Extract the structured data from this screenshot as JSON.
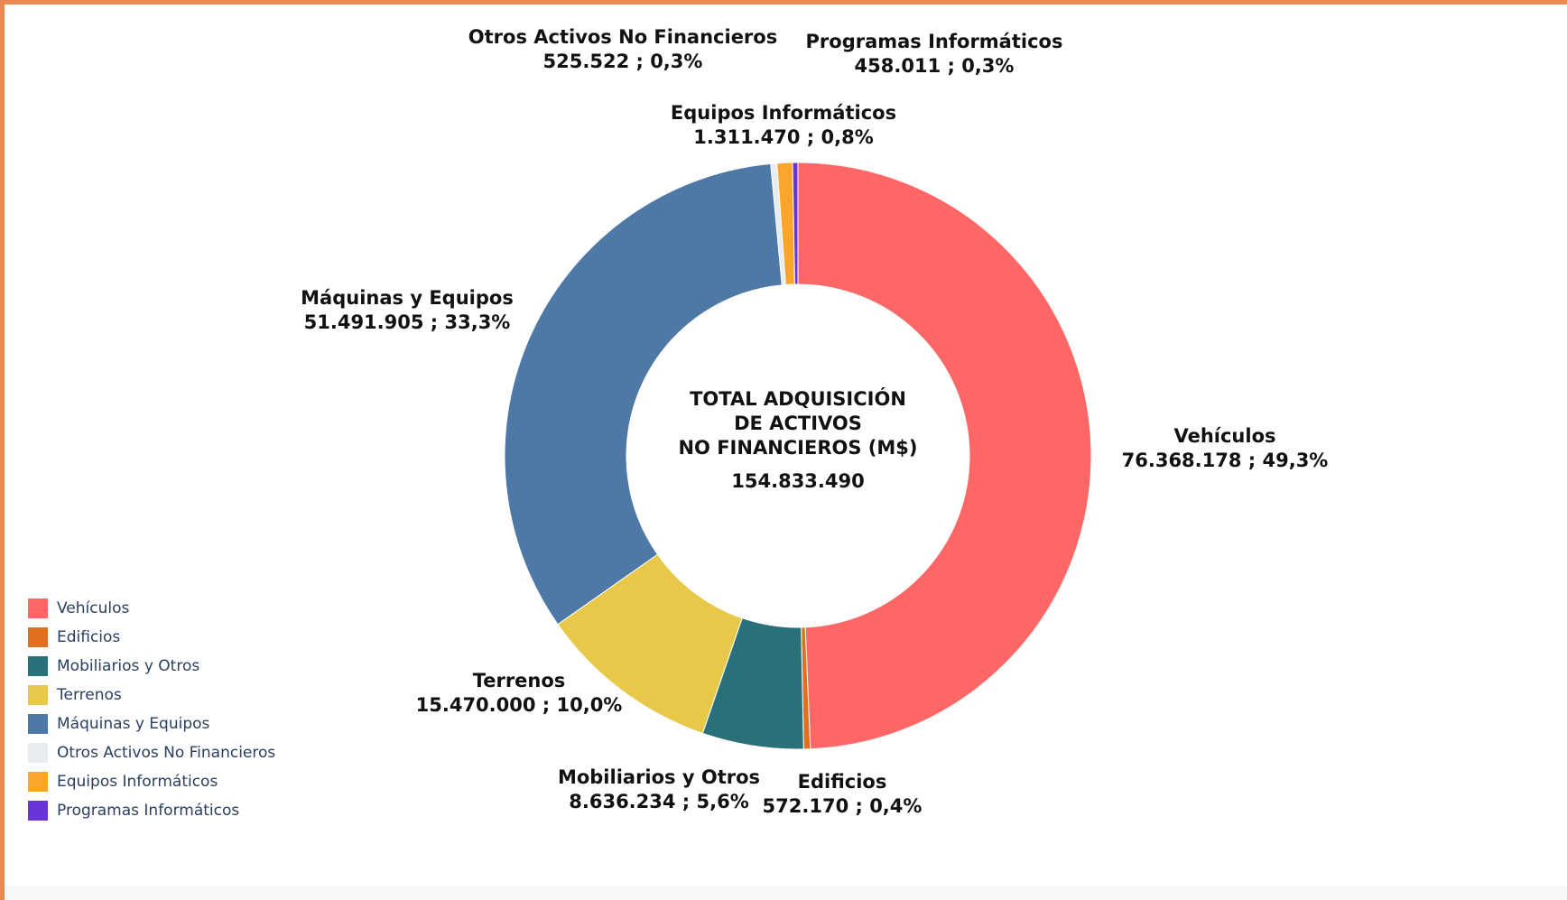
{
  "chart_data": {
    "type": "pie",
    "hole": true,
    "center_title": [
      "TOTAL ADQUISICIÓN",
      "DE ACTIVOS",
      "NO FINANCIEROS (M$)"
    ],
    "center_value": "154.833.490",
    "slices": [
      {
        "name": "Vehículos",
        "value": 76368178,
        "value_label": "76.368.178",
        "percent_label": "49,3%",
        "color": "#ff6666"
      },
      {
        "name": "Edificios",
        "value": 572170,
        "value_label": "572.170",
        "percent_label": "0,4%",
        "color": "#e07020"
      },
      {
        "name": "Mobiliarios y Otros",
        "value": 8636234,
        "value_label": "8.636.234",
        "percent_label": "5,6%",
        "color": "#2a7079"
      },
      {
        "name": "Terrenos",
        "value": 15470000,
        "value_label": "15.470.000",
        "percent_label": "10,0%",
        "color": "#e8c848"
      },
      {
        "name": "Máquinas y Equipos",
        "value": 51491905,
        "value_label": "51.491.905",
        "percent_label": "33,3%",
        "color": "#4e78a6"
      },
      {
        "name": "Otros Activos No Financieros",
        "value": 525522,
        "value_label": "525.522",
        "percent_label": "0,3%",
        "color": "#e9ecef"
      },
      {
        "name": "Equipos Informáticos",
        "value": 1311470,
        "value_label": "1.311.470",
        "percent_label": "0,8%",
        "color": "#fba52a"
      },
      {
        "name": "Programas Informáticos",
        "value": 458011,
        "value_label": "458.011",
        "percent_label": "0,3%",
        "color": "#6a35d8"
      }
    ],
    "legend_position": "bottom-left"
  }
}
